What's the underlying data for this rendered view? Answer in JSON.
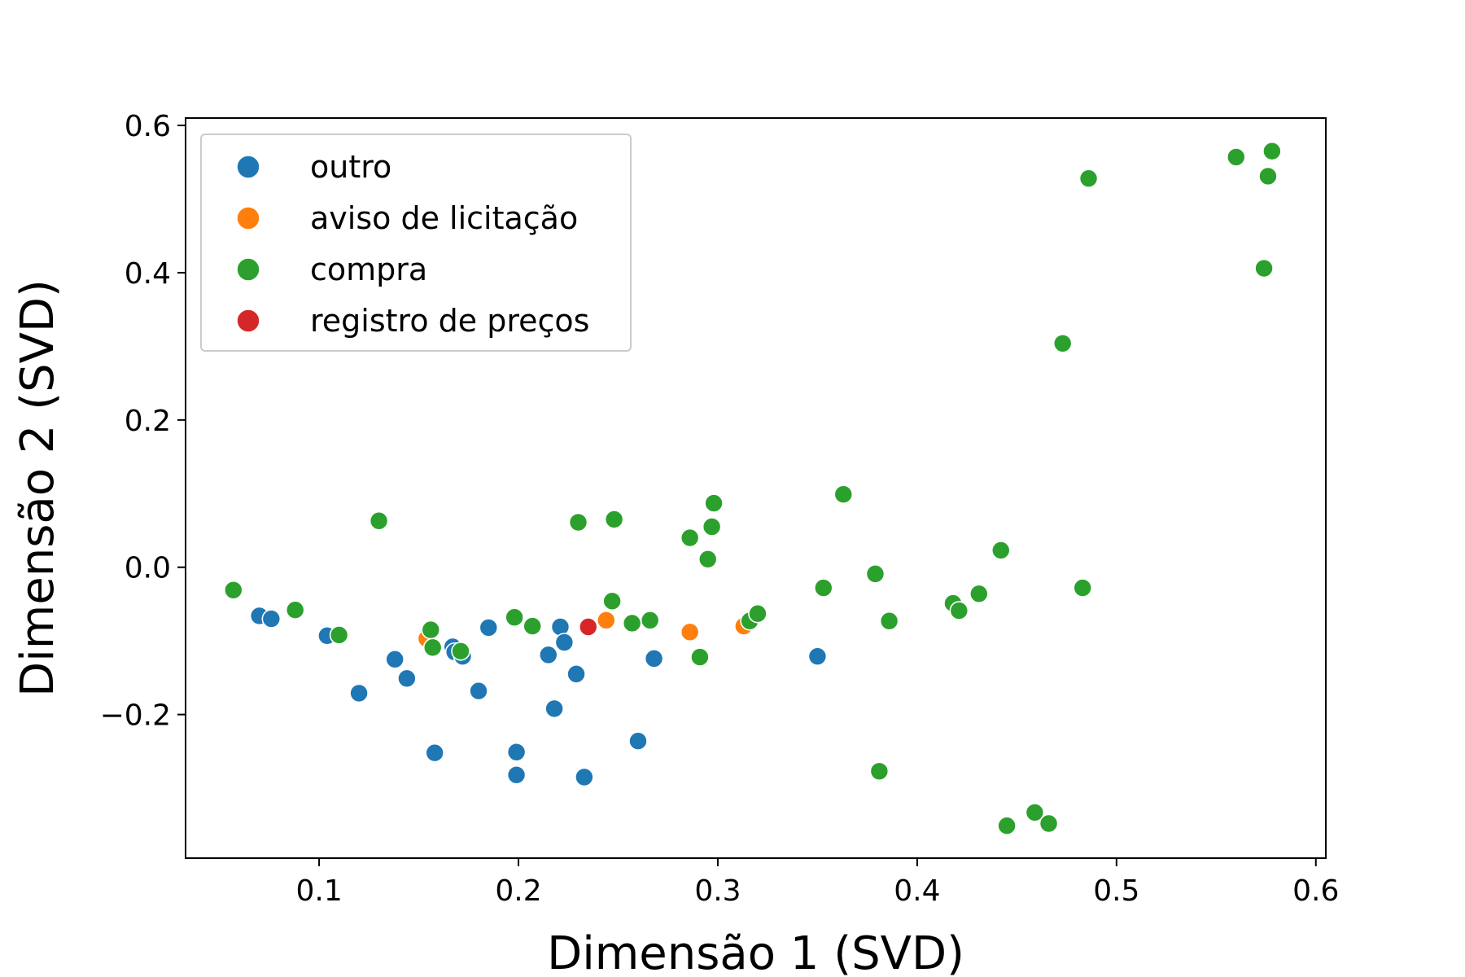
{
  "chart_data": {
    "type": "scatter",
    "title": "",
    "xlabel": "Dimensão 1 (SVD)",
    "ylabel": "Dimensão 2 (SVD)",
    "xlim": [
      0.033,
      0.605
    ],
    "ylim": [
      -0.395,
      0.61
    ],
    "xticks": [
      0.1,
      0.2,
      0.3,
      0.4,
      0.5,
      0.6
    ],
    "xtick_labels": [
      "0.1",
      "0.2",
      "0.3",
      "0.4",
      "0.5",
      "0.6"
    ],
    "yticks": [
      0.6,
      0.4,
      0.2,
      0.0,
      -0.2
    ],
    "ytick_labels": [
      "0.6",
      "0.4",
      "0.2",
      "0.0",
      "−0.2"
    ],
    "grid": false,
    "legend_position": "top-left",
    "series": [
      {
        "name": "outro",
        "color": "#1f77b4",
        "points": [
          [
            0.07,
            -0.066
          ],
          [
            0.076,
            -0.07
          ],
          [
            0.104,
            -0.093
          ],
          [
            0.12,
            -0.171
          ],
          [
            0.138,
            -0.125
          ],
          [
            0.144,
            -0.151
          ],
          [
            0.158,
            -0.252
          ],
          [
            0.167,
            -0.108
          ],
          [
            0.168,
            -0.115
          ],
          [
            0.172,
            -0.121
          ],
          [
            0.18,
            -0.168
          ],
          [
            0.185,
            -0.082
          ],
          [
            0.199,
            -0.251
          ],
          [
            0.199,
            -0.282
          ],
          [
            0.215,
            -0.119
          ],
          [
            0.218,
            -0.192
          ],
          [
            0.221,
            -0.081
          ],
          [
            0.223,
            -0.102
          ],
          [
            0.229,
            -0.145
          ],
          [
            0.233,
            -0.285
          ],
          [
            0.26,
            -0.236
          ],
          [
            0.268,
            -0.124
          ],
          [
            0.35,
            -0.121
          ]
        ]
      },
      {
        "name": "aviso de licitação",
        "color": "#ff7f0e",
        "points": [
          [
            0.154,
            -0.097
          ],
          [
            0.244,
            -0.072
          ],
          [
            0.286,
            -0.088
          ],
          [
            0.313,
            -0.08
          ]
        ]
      },
      {
        "name": "compra",
        "color": "#2ca02c",
        "points": [
          [
            0.057,
            -0.031
          ],
          [
            0.088,
            -0.058
          ],
          [
            0.11,
            -0.092
          ],
          [
            0.13,
            0.063
          ],
          [
            0.156,
            -0.085
          ],
          [
            0.157,
            -0.109
          ],
          [
            0.171,
            -0.114
          ],
          [
            0.198,
            -0.068
          ],
          [
            0.207,
            -0.08
          ],
          [
            0.23,
            0.061
          ],
          [
            0.247,
            -0.046
          ],
          [
            0.248,
            0.065
          ],
          [
            0.257,
            -0.076
          ],
          [
            0.266,
            -0.072
          ],
          [
            0.286,
            0.04
          ],
          [
            0.291,
            -0.122
          ],
          [
            0.295,
            0.011
          ],
          [
            0.297,
            0.055
          ],
          [
            0.298,
            0.087
          ],
          [
            0.316,
            -0.073
          ],
          [
            0.32,
            -0.063
          ],
          [
            0.353,
            -0.028
          ],
          [
            0.363,
            0.099
          ],
          [
            0.379,
            -0.009
          ],
          [
            0.381,
            -0.277
          ],
          [
            0.386,
            -0.073
          ],
          [
            0.418,
            -0.049
          ],
          [
            0.421,
            -0.059
          ],
          [
            0.431,
            -0.036
          ],
          [
            0.442,
            0.023
          ],
          [
            0.445,
            -0.351
          ],
          [
            0.459,
            -0.333
          ],
          [
            0.466,
            -0.348
          ],
          [
            0.473,
            0.304
          ],
          [
            0.483,
            -0.028
          ],
          [
            0.486,
            0.528
          ],
          [
            0.56,
            0.557
          ],
          [
            0.574,
            0.406
          ],
          [
            0.576,
            0.531
          ],
          [
            0.578,
            0.565
          ]
        ]
      },
      {
        "name": "registro de preços",
        "color": "#d62728",
        "points": [
          [
            0.235,
            -0.081
          ]
        ]
      }
    ]
  }
}
